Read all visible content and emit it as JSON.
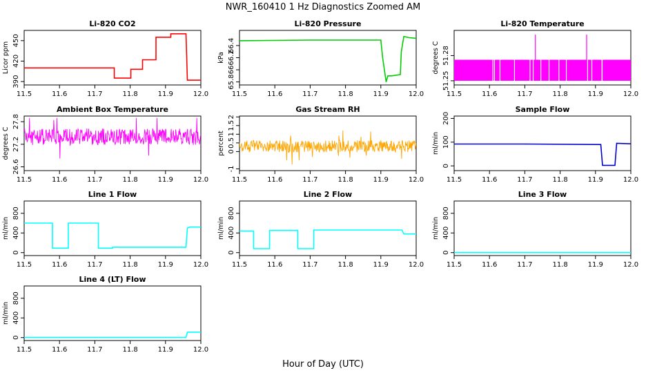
{
  "figure": {
    "title": "NWR_160410  1 Hz Diagnostics Zoomed AM",
    "xlabel": "Hour of Day (UTC)"
  },
  "chart_data": [
    {
      "id": "p1",
      "type": "line",
      "title": "Li-820 CO2",
      "ylabel": "Licor ppm",
      "color": "#ff0000",
      "xlim": [
        11.5,
        12.0
      ],
      "ylim": [
        385,
        465
      ],
      "yticks": [
        390,
        420,
        450
      ],
      "xticks": [
        11.5,
        11.6,
        11.7,
        11.8,
        11.9,
        12.0
      ],
      "x": [
        11.5,
        11.755,
        11.755,
        11.802,
        11.802,
        11.835,
        11.835,
        11.873,
        11.873,
        11.915,
        11.915,
        11.958,
        11.962,
        12.0
      ],
      "y": [
        410,
        410,
        395,
        395,
        408,
        408,
        422,
        422,
        455,
        455,
        460,
        460,
        392,
        392
      ]
    },
    {
      "id": "p2",
      "type": "line",
      "title": "Li-820 Pressure",
      "ylabel": "kPa",
      "color": "#00cc00",
      "xlim": [
        11.5,
        12.0
      ],
      "ylim": [
        65.75,
        66.65
      ],
      "yticks": [
        65.8,
        66.0,
        66.2,
        66.4
      ],
      "xticks": [
        11.5,
        11.6,
        11.7,
        11.8,
        11.9,
        12.0
      ],
      "x": [
        11.5,
        11.6,
        11.7,
        11.8,
        11.9,
        11.905,
        11.915,
        11.92,
        11.93,
        11.955,
        11.958,
        11.965,
        11.98,
        12.0
      ],
      "y": [
        66.48,
        66.485,
        66.49,
        66.49,
        66.49,
        66.2,
        65.8,
        65.9,
        65.9,
        65.92,
        66.3,
        66.55,
        66.53,
        66.52
      ]
    },
    {
      "id": "p3",
      "type": "line",
      "title": "Li-820 Temperature",
      "ylabel": "degrees C",
      "color": "#ff00ff",
      "xlim": [
        11.5,
        12.0
      ],
      "ylim": [
        51.245,
        51.31
      ],
      "yticks": [
        51.25,
        51.28
      ],
      "xticks": [
        11.5,
        11.6,
        11.7,
        11.8,
        11.9,
        12.0
      ],
      "band": [
        51.25,
        51.275
      ],
      "spikes": [
        {
          "x": 11.73,
          "y": 51.305
        },
        {
          "x": 11.875,
          "y": 51.305
        }
      ]
    },
    {
      "id": "p4",
      "type": "line",
      "title": "Ambient Box Temperature",
      "ylabel": "degrees C",
      "color": "#ff00ff",
      "xlim": [
        11.5,
        12.0
      ],
      "ylim": [
        26.5,
        27.95
      ],
      "yticks": [
        26.6,
        27.2,
        27.8
      ],
      "xticks": [
        11.5,
        11.6,
        11.7,
        11.8,
        11.9,
        12.0
      ],
      "noise": {
        "center": 27.4,
        "amp": 0.22,
        "min": 26.55,
        "max": 27.9
      }
    },
    {
      "id": "p5",
      "type": "line",
      "title": "Gas Stream RH",
      "ylabel": "percent",
      "color": "#ffa500",
      "xlim": [
        11.5,
        12.0
      ],
      "ylim": [
        -1.1,
        2.05
      ],
      "yticks": [
        -1.0,
        0.0,
        0.5,
        1.0,
        1.5,
        2.0
      ],
      "xticks": [
        11.5,
        11.6,
        11.7,
        11.8,
        11.9,
        12.0
      ],
      "noise": {
        "center": 0.3,
        "amp": 0.35,
        "min": -0.9,
        "max": 1.7
      }
    },
    {
      "id": "p6",
      "type": "line",
      "title": "Sample Flow",
      "ylabel": "ml/min",
      "color": "#0000cc",
      "xlim": [
        11.5,
        12.0
      ],
      "ylim": [
        -20,
        210
      ],
      "yticks": [
        0,
        100,
        200
      ],
      "xticks": [
        11.5,
        11.6,
        11.7,
        11.8,
        11.9,
        12.0
      ],
      "x": [
        11.5,
        11.7,
        11.9,
        11.915,
        11.92,
        11.955,
        11.96,
        12.0
      ],
      "y": [
        92,
        92,
        90,
        90,
        2,
        2,
        95,
        93
      ]
    },
    {
      "id": "p7",
      "type": "line",
      "title": "Line 1 Flow",
      "ylabel": "ml/min",
      "color": "#00ffff",
      "xlim": [
        11.5,
        12.0
      ],
      "ylim": [
        -60,
        1050
      ],
      "yticks": [
        0,
        400,
        800
      ],
      "xticks": [
        11.5,
        11.6,
        11.7,
        11.8,
        11.9,
        12.0
      ],
      "x": [
        11.5,
        11.58,
        11.58,
        11.625,
        11.625,
        11.71,
        11.71,
        11.75,
        11.75,
        11.958,
        11.962,
        11.97,
        12.0
      ],
      "y": [
        600,
        600,
        90,
        90,
        600,
        600,
        90,
        90,
        110,
        110,
        500,
        520,
        520
      ]
    },
    {
      "id": "p8",
      "type": "line",
      "title": "Line 2 Flow",
      "ylabel": "ml/min",
      "color": "#00ffff",
      "xlim": [
        11.5,
        12.0
      ],
      "ylim": [
        -60,
        1050
      ],
      "yticks": [
        0,
        400,
        800
      ],
      "xticks": [
        11.5,
        11.6,
        11.7,
        11.8,
        11.9,
        12.0
      ],
      "x": [
        11.5,
        11.54,
        11.54,
        11.585,
        11.585,
        11.665,
        11.665,
        11.71,
        11.71,
        11.96,
        11.965,
        12.0
      ],
      "y": [
        440,
        440,
        80,
        80,
        450,
        450,
        80,
        80,
        460,
        460,
        380,
        380
      ]
    },
    {
      "id": "p9",
      "type": "line",
      "title": "Line 3 Flow",
      "ylabel": "ml/min",
      "color": "#00ffff",
      "xlim": [
        11.5,
        12.0
      ],
      "ylim": [
        -60,
        1050
      ],
      "yticks": [
        0,
        400,
        800
      ],
      "xticks": [
        11.5,
        11.6,
        11.7,
        11.8,
        11.9,
        12.0
      ],
      "x": [
        11.5,
        12.0
      ],
      "y": [
        0,
        0
      ]
    },
    {
      "id": "p10",
      "type": "line",
      "title": "Line 4 (LT) Flow",
      "ylabel": "ml/min",
      "color": "#00ffff",
      "xlim": [
        11.5,
        12.0
      ],
      "ylim": [
        -60,
        1050
      ],
      "yticks": [
        0,
        400,
        800
      ],
      "xticks": [
        11.5,
        11.6,
        11.7,
        11.8,
        11.9,
        12.0
      ],
      "x": [
        11.5,
        11.958,
        11.962,
        12.0
      ],
      "y": [
        5,
        5,
        110,
        110
      ]
    }
  ]
}
